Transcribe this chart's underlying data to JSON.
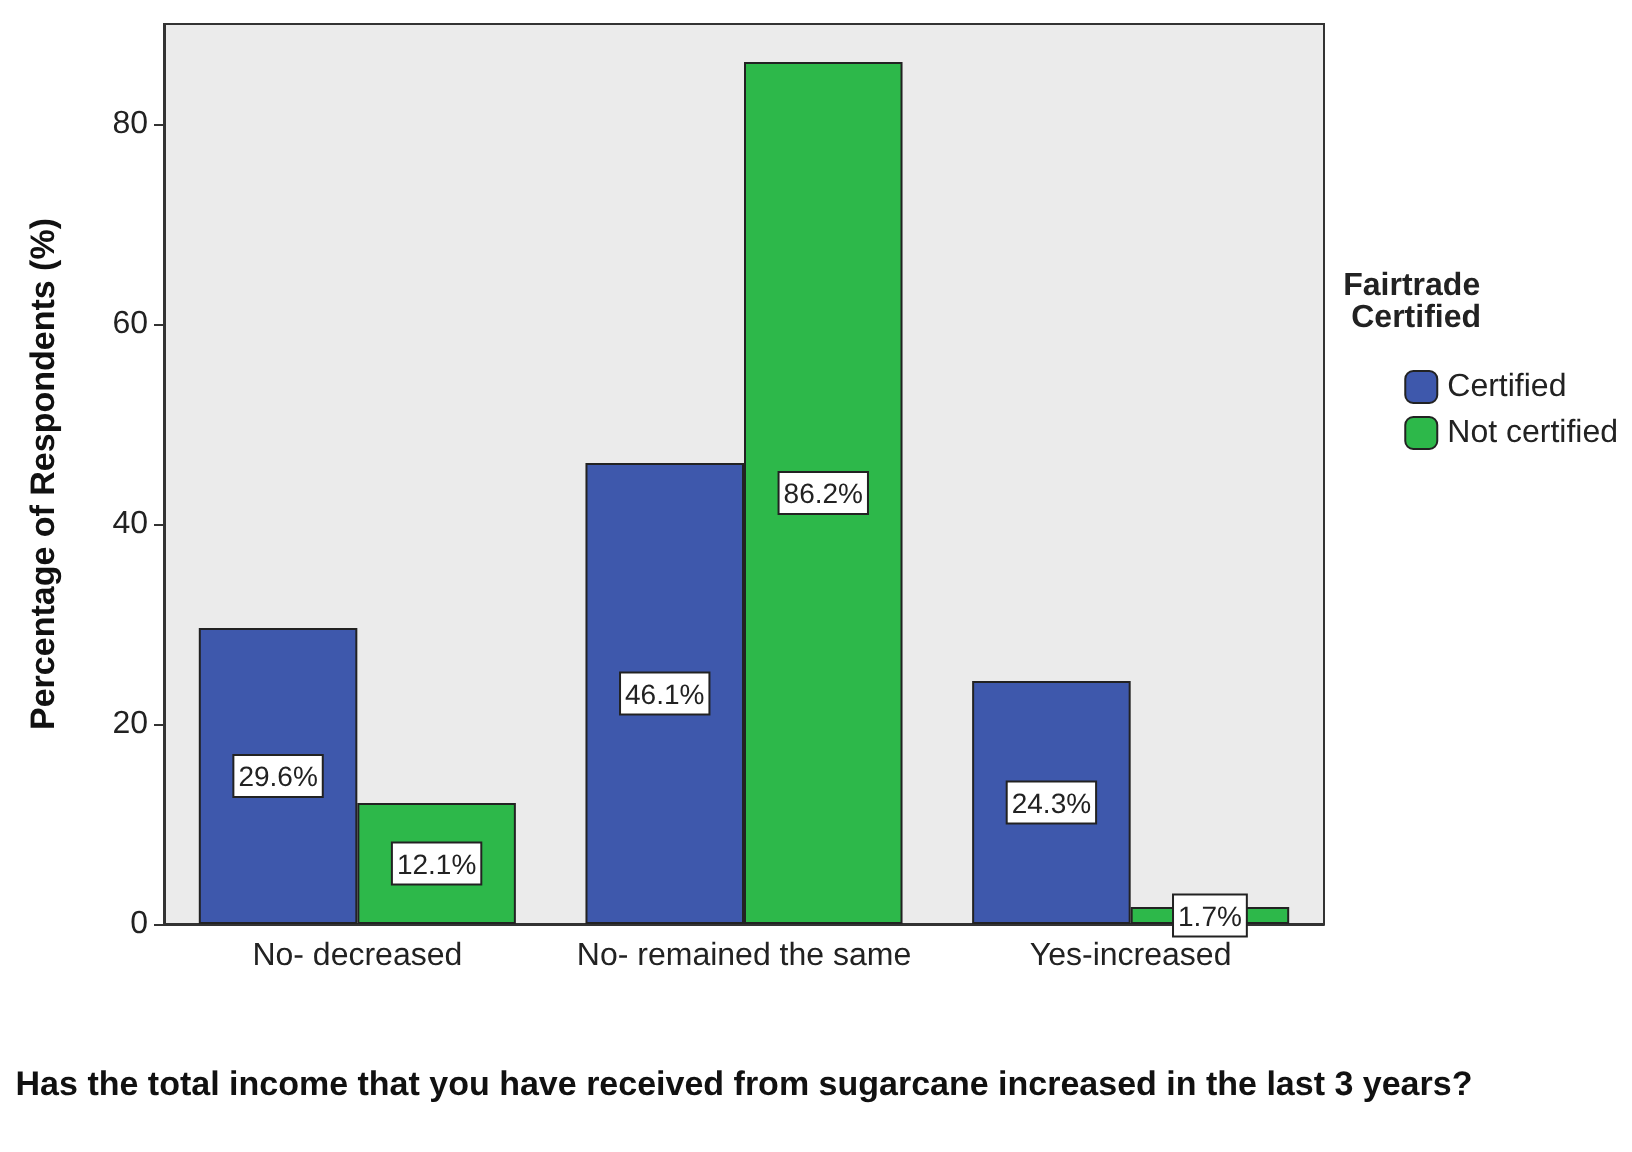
{
  "chart_data": {
    "type": "bar",
    "xlabel": "Has the total income that you have received from sugarcane increased in the last 3 years?",
    "ylabel": "Percentage of Respondents (%)",
    "legend_title": "Fairtrade Certified",
    "legend": "right",
    "grid": false,
    "categories": [
      "No- decreased",
      "No- remained the same",
      "Yes-increased"
    ],
    "series": [
      {
        "name": "Certified",
        "color": "#3e58ac",
        "values": [
          29.6,
          46.1,
          24.3
        ],
        "value_labels": [
          "29.6%",
          "46.1%",
          "24.3%"
        ]
      },
      {
        "name": "Not certified",
        "color": "#2db84a",
        "values": [
          12.1,
          86.2,
          1.7
        ],
        "value_labels": [
          "12.1%",
          "86.2%",
          "1.7%"
        ]
      }
    ],
    "ylim": [
      0,
      90
    ],
    "yticks": [
      0,
      20,
      40,
      60,
      80
    ]
  }
}
